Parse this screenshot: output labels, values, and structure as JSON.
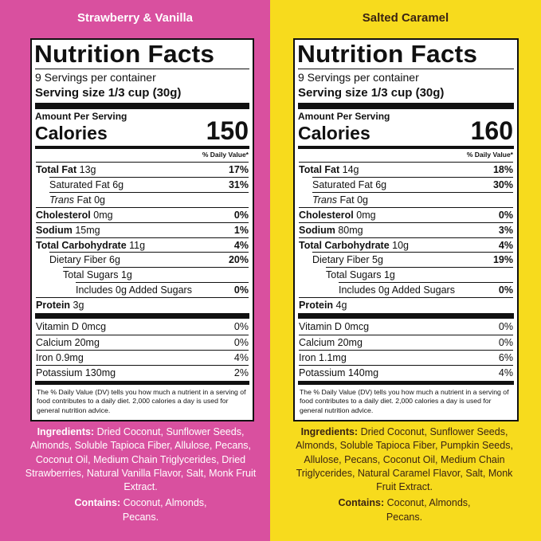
{
  "panels": [
    {
      "flavor": "Strawberry & Vanilla",
      "label": {
        "title": "Nutrition Facts",
        "servings": "9 Servings per container",
        "serving_size_label": "Serving size",
        "serving_size": "1/3 cup (30g)",
        "amount_per_serving": "Amount Per Serving",
        "calories_label": "Calories",
        "calories": 150,
        "dv_header": "% Daily Value*",
        "nutrients": [
          {
            "label": "Total Fat",
            "amount": "13g",
            "dv": "17%",
            "style": "main"
          },
          {
            "label": "Saturated Fat",
            "amount": "6g",
            "dv": "31%",
            "style": "sub"
          },
          {
            "label_italic": "Trans",
            "label": "Fat",
            "amount": "0g",
            "style": "sub"
          },
          {
            "label": "Cholesterol",
            "amount": "0mg",
            "dv": "0%",
            "style": "main"
          },
          {
            "label": "Sodium",
            "amount": "15mg",
            "dv": "1%",
            "style": "main"
          },
          {
            "label": "Total Carbohydrate",
            "amount": "11g",
            "dv": "4%",
            "style": "main"
          },
          {
            "label": "Dietary Fiber",
            "amount": "6g",
            "dv": "20%",
            "style": "sub"
          },
          {
            "label": "Total Sugars",
            "amount": "1g",
            "style": "sub2"
          },
          {
            "label": "Includes 0g Added Sugars",
            "dv": "0%",
            "style": "sub3"
          },
          {
            "label": "Protein",
            "amount": "3g",
            "style": "main"
          }
        ],
        "vitamins": [
          {
            "label": "Vitamin D",
            "amount": "0mcg",
            "dv": "0%"
          },
          {
            "label": "Calcium",
            "amount": "20mg",
            "dv": "0%"
          },
          {
            "label": "Iron",
            "amount": "0.9mg",
            "dv": "4%"
          },
          {
            "label": "Potassium",
            "amount": "130mg",
            "dv": "2%"
          }
        ],
        "footnote": "The % Daily Value (DV) tells you how much a nutrient in a serving of food contributes to a daily diet. 2,000 calories a day is used for general nutrition advice."
      },
      "ingredients_label": "Ingredients:",
      "ingredients": "Dried Coconut, Sunflower Seeds, Almonds, Soluble Tapioca Fiber, Allulose, Pecans, Coconut Oil, Medium Chain Triglycerides, Dried Strawberries, Natural Vanilla Flavor, Salt, Monk Fruit Extract.",
      "contains_label": "Contains:",
      "contains": "Coconut, Almonds, Pecans."
    },
    {
      "flavor": "Salted Caramel",
      "label": {
        "title": "Nutrition Facts",
        "servings": "9 Servings per container",
        "serving_size_label": "Serving size",
        "serving_size": "1/3 cup (30g)",
        "amount_per_serving": "Amount Per Serving",
        "calories_label": "Calories",
        "calories": 160,
        "dv_header": "% Daily Value*",
        "nutrients": [
          {
            "label": "Total Fat",
            "amount": "14g",
            "dv": "18%",
            "style": "main"
          },
          {
            "label": "Saturated Fat",
            "amount": "6g",
            "dv": "30%",
            "style": "sub"
          },
          {
            "label_italic": "Trans",
            "label": "Fat",
            "amount": "0g",
            "style": "sub"
          },
          {
            "label": "Cholesterol",
            "amount": "0mg",
            "dv": "0%",
            "style": "main"
          },
          {
            "label": "Sodium",
            "amount": "80mg",
            "dv": "3%",
            "style": "main"
          },
          {
            "label": "Total Carbohydrate",
            "amount": "10g",
            "dv": "4%",
            "style": "main"
          },
          {
            "label": "Dietary Fiber",
            "amount": "5g",
            "dv": "19%",
            "style": "sub"
          },
          {
            "label": "Total Sugars",
            "amount": "1g",
            "style": "sub2"
          },
          {
            "label": "Includes 0g Added Sugars",
            "dv": "0%",
            "style": "sub3"
          },
          {
            "label": "Protein",
            "amount": "4g",
            "style": "main"
          }
        ],
        "vitamins": [
          {
            "label": "Vitamin D",
            "amount": "0mcg",
            "dv": "0%"
          },
          {
            "label": "Calcium",
            "amount": "20mg",
            "dv": "0%"
          },
          {
            "label": "Iron",
            "amount": "1.1mg",
            "dv": "6%"
          },
          {
            "label": "Potassium",
            "amount": "140mg",
            "dv": "4%"
          }
        ],
        "footnote": "The % Daily Value (DV) tells you how much a nutrient in a serving of food contributes to a daily diet. 2,000 calories a day is used for general nutrition advice."
      },
      "ingredients_label": "Ingredients:",
      "ingredients": "Dried Coconut, Sunflower Seeds, Almonds, Soluble Tapioca Fiber, Pumpkin Seeds, Allulose, Pecans, Coconut Oil, Medium Chain Triglycerides, Natural Caramel Flavor, Salt, Monk Fruit Extract.",
      "contains_label": "Contains:",
      "contains": "Coconut, Almonds, Pecans."
    }
  ]
}
